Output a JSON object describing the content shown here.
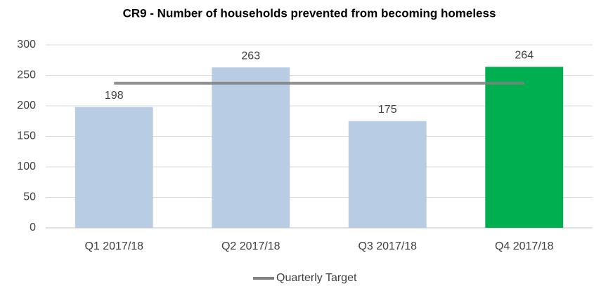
{
  "chart_data": {
    "type": "bar",
    "title": "CR9 - Number of households prevented from becoming homeless",
    "categories": [
      "Q1 2017/18",
      "Q2 2017/18",
      "Q3 2017/18",
      "Q4 2017/18"
    ],
    "series": [
      {
        "type": "bar",
        "colors": [
          "#b8cce4",
          "#b8cce4",
          "#b8cce4",
          "#00b050"
        ],
        "values": [
          198,
          263,
          175,
          264
        ]
      },
      {
        "type": "line",
        "name": "Quarterly Target",
        "color": "#808080",
        "values": [
          237,
          237,
          237,
          237
        ]
      }
    ],
    "ylim": [
      0,
      300
    ],
    "yticks": [
      0,
      50,
      100,
      150,
      200,
      250,
      300
    ],
    "grid": true,
    "legend": "bottom"
  }
}
